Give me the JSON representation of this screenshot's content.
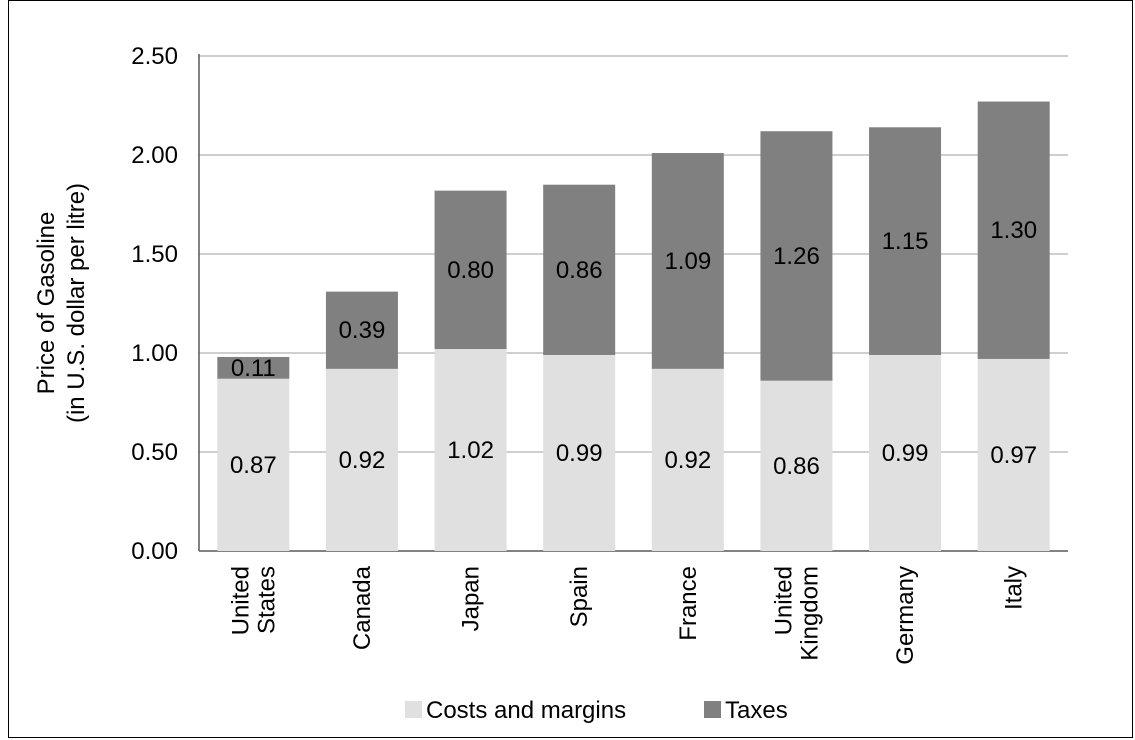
{
  "chart_data": {
    "type": "bar",
    "stacked": true,
    "categories": [
      "United States",
      "Canada",
      "Japan",
      "Spain",
      "France",
      "United Kingdom",
      "Germany",
      "Italy"
    ],
    "category_lines": [
      [
        "United",
        "States"
      ],
      [
        "Canada"
      ],
      [
        "Japan"
      ],
      [
        "Spain"
      ],
      [
        "France"
      ],
      [
        "United",
        "Kingdom"
      ],
      [
        "Germany"
      ],
      [
        "Italy"
      ]
    ],
    "series": [
      {
        "name": "Costs and margins",
        "values": [
          0.87,
          0.92,
          1.02,
          0.99,
          0.92,
          0.86,
          0.99,
          0.97
        ],
        "color": "#e0e0e0"
      },
      {
        "name": "Taxes",
        "values": [
          0.11,
          0.39,
          0.8,
          0.86,
          1.09,
          1.26,
          1.15,
          1.3
        ],
        "color": "#808080"
      }
    ],
    "ylabel_lines": [
      "Price of Gasoline",
      "(in U.S. dollar per litre)"
    ],
    "ylim": [
      0,
      2.5
    ],
    "yticks": [
      "0.00",
      "0.50",
      "1.00",
      "1.50",
      "2.00",
      "2.50"
    ],
    "grid": true,
    "legend_position": "bottom"
  }
}
